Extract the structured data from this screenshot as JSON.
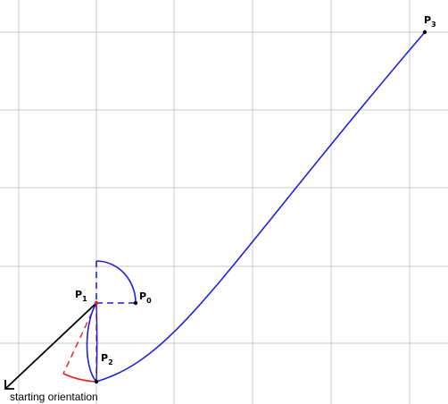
{
  "points": {
    "p0": {
      "letter": "P",
      "index": "0"
    },
    "p1": {
      "letter": "P",
      "index": "1"
    },
    "p2": {
      "letter": "P",
      "index": "2"
    },
    "p3": {
      "letter": "P",
      "index": "3"
    }
  },
  "caption": "starting orientation",
  "colors": {
    "grid": "#c8c8c8",
    "path": "#1f1fe0",
    "red": "#e02020",
    "arrow": "#000000"
  }
}
